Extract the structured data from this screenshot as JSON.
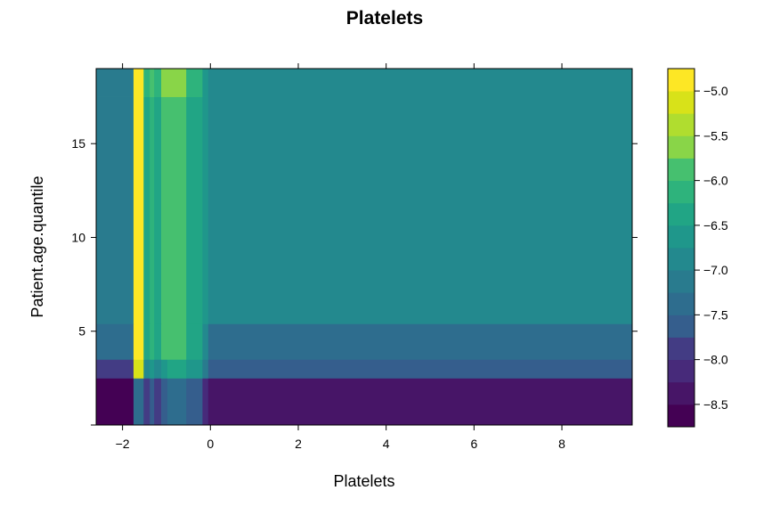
{
  "chart_data": {
    "type": "heatmap",
    "title": "Platelets",
    "xlabel": "Platelets",
    "ylabel": "Patient.age.quantile",
    "xlim": [
      -2.6,
      9.6
    ],
    "ylim": [
      0,
      19
    ],
    "x_ticks": [
      -2,
      0,
      2,
      4,
      6,
      8
    ],
    "x_tick_labels": [
      "−2",
      "0",
      "2",
      "4",
      "6",
      "8"
    ],
    "y_ticks": [
      5,
      10,
      15
    ],
    "y_tick_labels": [
      "5",
      "10",
      "15"
    ],
    "x_bins": [
      [
        -2.6,
        -1.75
      ],
      [
        -1.75,
        -1.52
      ],
      [
        -1.52,
        -1.38
      ],
      [
        -1.38,
        -1.28
      ],
      [
        -1.28,
        -1.12
      ],
      [
        -1.12,
        -0.98
      ],
      [
        -0.98,
        -0.55
      ],
      [
        -0.55,
        -0.18
      ],
      [
        -0.18,
        -0.05
      ],
      [
        -0.05,
        9.6
      ]
    ],
    "y_bins": [
      [
        0,
        2.5
      ],
      [
        2.5,
        3.5
      ],
      [
        3.5,
        5.4
      ],
      [
        5.4,
        17.5
      ],
      [
        17.5,
        19
      ]
    ],
    "z": [
      [
        -8.65,
        -7.3,
        -7.95,
        -7.65,
        -7.95,
        -7.7,
        -7.5,
        -7.75,
        -8.1,
        -8.3
      ],
      [
        -7.8,
        -5.1,
        -6.8,
        -6.7,
        -6.85,
        -6.6,
        -6.45,
        -6.7,
        -7.1,
        -7.55
      ],
      [
        -7.35,
        -4.9,
        -6.4,
        -6.1,
        -6.4,
        -5.95,
        -5.95,
        -6.45,
        -6.9,
        -7.35
      ],
      [
        -7.25,
        -4.9,
        -6.35,
        -6.1,
        -6.3,
        -5.95,
        -5.9,
        -6.35,
        -6.75,
        -6.95
      ],
      [
        -7.05,
        -4.85,
        -6.2,
        -5.85,
        -6.2,
        -5.6,
        -5.55,
        -6.05,
        -6.6,
        -6.95
      ]
    ],
    "colorbar": {
      "min": -8.75,
      "max": -4.75,
      "levels": 16,
      "colors": [
        "#440154",
        "#471567",
        "#472A7A",
        "#433C84",
        "#3D4E8A",
        "#355E8D",
        "#2E6D8E",
        "#297B8E",
        "#23898E",
        "#1F978B",
        "#21A585",
        "#2EB37C",
        "#46C06F",
        "#65CB5E",
        "#89D548",
        "#B0DD2F",
        "#D8E219",
        "#FDE725"
      ],
      "ticks": [
        -8.5,
        -8.0,
        -7.5,
        -7.0,
        -6.5,
        -6.0,
        -5.5,
        -5.0
      ],
      "tick_labels": [
        "−8.5",
        "−8.0",
        "−7.5",
        "−7.0",
        "−6.5",
        "−6.0",
        "−5.5",
        "−5.0"
      ]
    },
    "grid": false,
    "legend": "colorbar right"
  }
}
